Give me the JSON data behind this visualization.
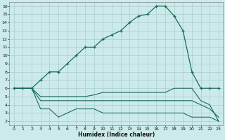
{
  "xlabel": "Humidex (Indice chaleur)",
  "bg_color": "#cceaea",
  "grid_color": "#aacccc",
  "line_color": "#1a6b5a",
  "xlim": [
    -0.5,
    23.5
  ],
  "ylim": [
    1.5,
    16.5
  ],
  "x_ticks": [
    0,
    1,
    2,
    3,
    4,
    5,
    6,
    7,
    8,
    9,
    10,
    11,
    12,
    13,
    14,
    15,
    16,
    17,
    18,
    19,
    20,
    21,
    22,
    23
  ],
  "y_ticks": [
    2,
    3,
    4,
    5,
    6,
    7,
    8,
    9,
    10,
    11,
    12,
    13,
    14,
    15,
    16
  ],
  "line1_x": [
    0,
    1,
    2,
    3,
    4,
    5,
    6,
    7,
    8,
    9,
    10,
    11,
    12,
    13,
    14,
    15,
    16,
    17,
    18,
    19,
    20,
    21,
    22,
    23
  ],
  "line1_y": [
    6,
    6,
    6,
    7,
    8,
    8,
    9,
    10,
    11,
    11,
    12,
    12.5,
    13,
    14,
    14.8,
    15,
    16,
    16,
    14.8,
    13,
    8,
    6,
    6,
    6
  ],
  "line2_x": [
    0,
    1,
    2,
    3,
    4,
    5,
    6,
    7,
    8,
    9,
    10,
    11,
    12,
    13,
    14,
    15,
    16,
    17,
    18,
    19,
    20,
    21,
    22,
    23
  ],
  "line2_y": [
    6,
    6,
    6,
    5,
    5,
    5,
    5,
    5,
    5,
    5.2,
    5.5,
    5.5,
    5.5,
    5.5,
    5.5,
    5.5,
    5.5,
    5.5,
    6,
    6,
    6,
    4.5,
    4,
    2
  ],
  "line3_x": [
    0,
    1,
    2,
    3,
    4,
    5,
    6,
    7,
    8,
    9,
    10,
    11,
    12,
    13,
    14,
    15,
    16,
    17,
    18,
    19,
    20,
    21,
    22,
    23
  ],
  "line3_y": [
    6,
    6,
    6,
    4.5,
    4.5,
    4.5,
    4.5,
    4.5,
    4.5,
    4.5,
    4.5,
    4.5,
    4.5,
    4.5,
    4.5,
    4.5,
    4.5,
    4.5,
    4.5,
    4.5,
    4.5,
    4,
    3.5,
    2.5
  ],
  "line4_x": [
    0,
    1,
    2,
    3,
    4,
    5,
    6,
    7,
    8,
    9,
    10,
    11,
    12,
    13,
    14,
    15,
    16,
    17,
    18,
    19,
    20,
    21,
    22,
    23
  ],
  "line4_y": [
    6,
    6,
    6,
    3.5,
    3.5,
    2.5,
    3,
    3.5,
    3.5,
    3.5,
    3,
    3,
    3,
    3,
    3,
    3,
    3,
    3,
    3,
    3,
    2.5,
    2.5,
    2.5,
    2
  ]
}
